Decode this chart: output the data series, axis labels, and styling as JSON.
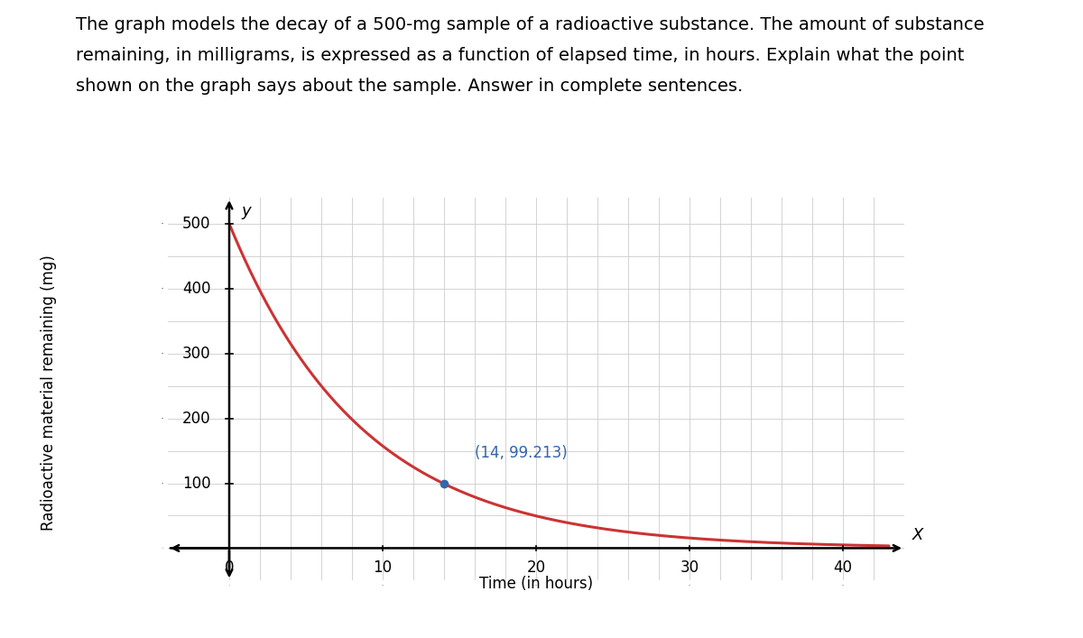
{
  "title_line1": "The graph models the decay of a 500-mg sample of a radioactive substance. The amount of substance",
  "title_line2": "remaining, in milligrams, is expressed as a function of elapsed time, in hours. Explain what the point",
  "title_line3": "shown on the graph says about the sample. Answer in complete sentences.",
  "initial_amount": 500,
  "x_ticks": [
    0,
    10,
    20,
    30,
    40
  ],
  "y_ticks": [
    100,
    200,
    300,
    400,
    500
  ],
  "xlabel": "Time (in hours)",
  "ylabel": "Radioactive material remaining (mg)",
  "point_x": 14,
  "point_y": 99.213,
  "point_label": "(14, 99.213)",
  "curve_color": "#cc3333",
  "point_color": "#3366aa",
  "point_label_color": "#3366aa",
  "grid_major_color": "#cccccc",
  "grid_minor_color": "#dddddd",
  "axis_color": "#000000",
  "background_color": "#ffffff",
  "curve_linewidth": 2.2,
  "point_size": 7,
  "title_fontsize": 14,
  "axis_label_fontsize": 12,
  "tick_fontsize": 12,
  "annotation_fontsize": 12
}
